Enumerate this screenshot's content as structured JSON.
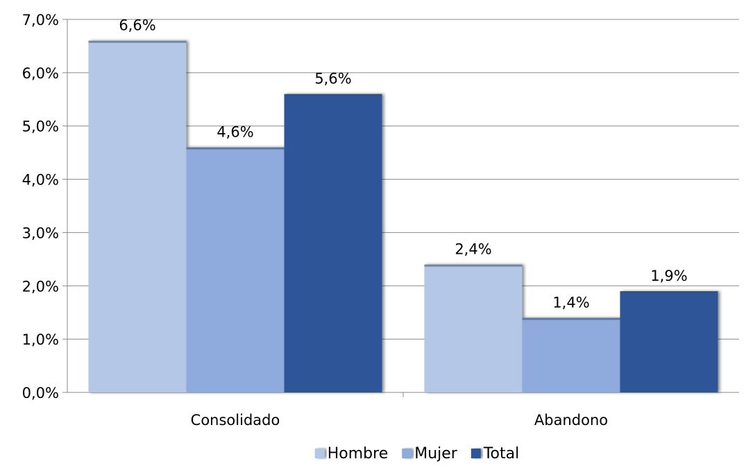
{
  "chart_data": {
    "type": "bar",
    "categories": [
      "Consolidado",
      "Abandono"
    ],
    "series": [
      {
        "name": "Hombre",
        "values": [
          6.6,
          2.4
        ],
        "labels": [
          "6,6%",
          "2,4%"
        ],
        "color": "#b4c7e7"
      },
      {
        "name": "Mujer",
        "values": [
          4.6,
          1.4
        ],
        "labels": [
          "4,6%",
          "1,4%"
        ],
        "color": "#8faadc"
      },
      {
        "name": "Total",
        "values": [
          5.6,
          1.9
        ],
        "labels": [
          "5,6%",
          "1,9%"
        ],
        "color": "#2f5597"
      }
    ],
    "ylim": [
      0,
      7
    ],
    "yticks": [
      0,
      1,
      2,
      3,
      4,
      5,
      6,
      7
    ],
    "ytick_labels": [
      "0,0%",
      "1,0%",
      "2,0%",
      "3,0%",
      "4,0%",
      "5,0%",
      "6,0%",
      "7,0%"
    ],
    "title": "",
    "xlabel": "",
    "ylabel": "",
    "grid": true,
    "legend_position": "bottom"
  }
}
